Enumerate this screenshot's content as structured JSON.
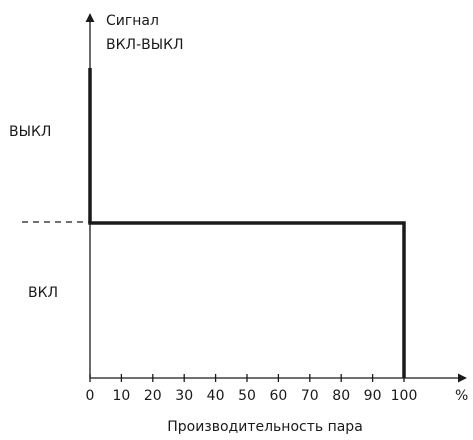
{
  "chart_data": {
    "type": "line",
    "title": "",
    "ylabel_line1": "Сигнал",
    "ylabel_line2": "ВКЛ-ВЫКЛ",
    "xlabel": "Производительность пара",
    "x_unit": "%",
    "state_labels": {
      "off": "ВЫКЛ",
      "on": "ВКЛ"
    },
    "x_ticks": [
      0,
      10,
      20,
      30,
      40,
      50,
      60,
      70,
      80,
      90,
      100
    ],
    "xlim": [
      0,
      115
    ],
    "series": [
      {
        "points": [
          [
            0,
            1
          ],
          [
            0,
            0.5
          ],
          [
            100,
            0.5
          ],
          [
            100,
            0
          ]
        ]
      }
    ],
    "ylim": [
      0,
      1
    ],
    "grid": false,
    "colors": {
      "axis": "#1a1a1a",
      "line": "#1a1a1a"
    }
  }
}
